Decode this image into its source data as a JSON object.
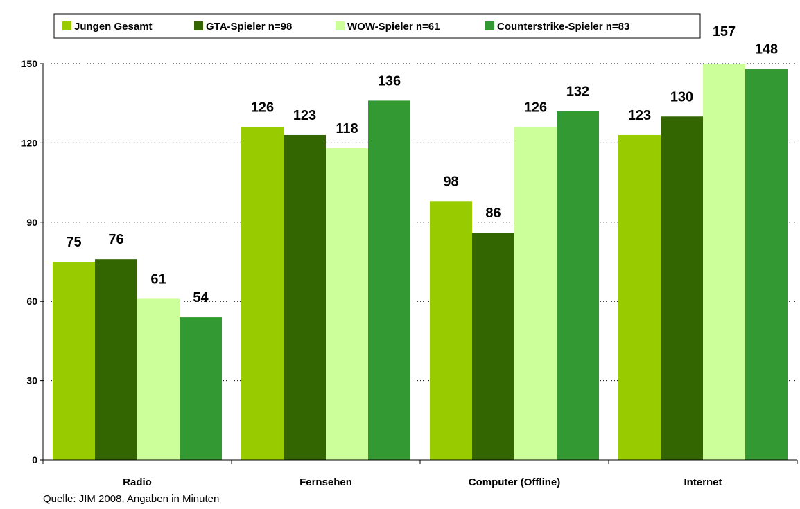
{
  "chart_data": {
    "type": "bar",
    "categories": [
      "Radio",
      "Fernsehen",
      "Computer (Offline)",
      "Internet"
    ],
    "series": [
      {
        "name": "Jungen Gesamt",
        "color": "#99cc00",
        "values": [
          75,
          126,
          98,
          123
        ]
      },
      {
        "name": "GTA-Spieler n=98",
        "color": "#336600",
        "values": [
          76,
          123,
          86,
          130
        ]
      },
      {
        "name": "WOW-Spieler n=61",
        "color": "#ccff99",
        "values": [
          61,
          118,
          126,
          157
        ]
      },
      {
        "name": "Counterstrike-Spieler n=83",
        "color": "#339933",
        "values": [
          54,
          136,
          132,
          148
        ]
      }
    ],
    "ylim": [
      0,
      150
    ],
    "yticks": [
      0,
      30,
      60,
      90,
      120,
      150
    ],
    "grid": true,
    "legend": "top",
    "source": "Quelle: JIM 2008, Angaben in Minuten"
  }
}
